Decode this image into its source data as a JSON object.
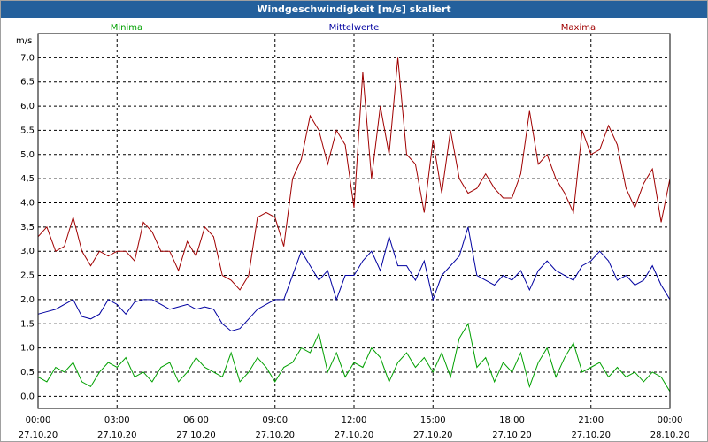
{
  "chart_data": {
    "type": "line",
    "title": "Windgeschwindigkeit [m/s] skaliert",
    "ylabel": "m/s",
    "x": [
      0,
      20,
      40,
      60,
      80,
      100,
      120,
      140,
      160,
      180,
      200,
      220,
      240,
      260,
      280,
      300,
      320,
      340,
      360,
      380,
      400,
      420,
      440,
      460,
      480,
      500,
      520,
      540,
      560,
      580,
      600,
      620,
      640,
      660,
      680,
      700,
      720,
      740,
      760,
      780,
      800,
      820,
      840,
      860,
      880,
      900,
      920,
      940,
      960,
      980,
      1000,
      1020,
      1040,
      1060,
      1080,
      1100,
      1120,
      1140,
      1160,
      1180,
      1200,
      1220,
      1240,
      1260,
      1280,
      1300,
      1320,
      1340,
      1360,
      1380,
      1400,
      1420,
      1440
    ],
    "series": [
      {
        "name": "Minima",
        "color": "#00a000",
        "values": [
          0.4,
          0.3,
          0.6,
          0.5,
          0.7,
          0.3,
          0.2,
          0.5,
          0.7,
          0.6,
          0.8,
          0.4,
          0.5,
          0.3,
          0.6,
          0.7,
          0.3,
          0.5,
          0.8,
          0.6,
          0.5,
          0.4,
          0.9,
          0.3,
          0.5,
          0.8,
          0.6,
          0.3,
          0.6,
          0.7,
          1.0,
          0.9,
          1.3,
          0.5,
          0.9,
          0.4,
          0.7,
          0.6,
          1.0,
          0.8,
          0.3,
          0.7,
          0.9,
          0.6,
          0.8,
          0.5,
          0.9,
          0.4,
          1.2,
          1.5,
          0.6,
          0.8,
          0.3,
          0.7,
          0.5,
          0.9,
          0.2,
          0.7,
          1.0,
          0.4,
          0.8,
          1.1,
          0.5,
          0.6,
          0.7,
          0.4,
          0.6,
          0.4,
          0.5,
          0.3,
          0.5,
          0.4,
          0.1
        ]
      },
      {
        "name": "Mittelwerte",
        "color": "#0000a0",
        "values": [
          1.7,
          1.75,
          1.8,
          1.9,
          2.0,
          1.65,
          1.6,
          1.7,
          2.0,
          1.9,
          1.7,
          1.95,
          2.0,
          2.0,
          1.9,
          1.8,
          1.85,
          1.9,
          1.8,
          1.85,
          1.8,
          1.5,
          1.35,
          1.4,
          1.6,
          1.8,
          1.9,
          2.0,
          2.0,
          2.5,
          3.0,
          2.7,
          2.4,
          2.6,
          2.0,
          2.5,
          2.5,
          2.8,
          3.0,
          2.6,
          3.3,
          2.7,
          2.7,
          2.4,
          2.8,
          2.0,
          2.5,
          2.7,
          2.9,
          3.5,
          2.5,
          2.4,
          2.3,
          2.5,
          2.4,
          2.6,
          2.2,
          2.6,
          2.8,
          2.6,
          2.5,
          2.4,
          2.7,
          2.8,
          3.0,
          2.8,
          2.4,
          2.5,
          2.3,
          2.4,
          2.7,
          2.3,
          2.0
        ]
      },
      {
        "name": "Maxima",
        "color": "#a00000",
        "values": [
          3.3,
          3.5,
          3.0,
          3.1,
          3.7,
          3.0,
          2.7,
          3.0,
          2.9,
          3.0,
          3.0,
          2.8,
          3.6,
          3.4,
          3.0,
          3.0,
          2.6,
          3.2,
          2.9,
          3.5,
          3.3,
          2.5,
          2.4,
          2.2,
          2.5,
          3.7,
          3.8,
          3.7,
          3.1,
          4.5,
          4.9,
          5.8,
          5.5,
          4.8,
          5.5,
          5.2,
          3.9,
          6.7,
          4.5,
          6.0,
          5.0,
          7.0,
          5.0,
          4.8,
          3.8,
          5.3,
          4.2,
          5.5,
          4.5,
          4.2,
          4.3,
          4.6,
          4.3,
          4.1,
          4.1,
          4.6,
          5.9,
          4.8,
          5.0,
          4.5,
          4.2,
          3.8,
          5.5,
          5.0,
          5.1,
          5.6,
          5.2,
          4.3,
          3.9,
          4.4,
          4.7,
          3.6,
          4.5
        ]
      }
    ],
    "xlim": [
      0,
      1440
    ],
    "xticks": [
      {
        "value": 0,
        "label": "00:00\n27.10.20"
      },
      {
        "value": 180,
        "label": "03:00\n27.10.20"
      },
      {
        "value": 360,
        "label": "06:00\n27.10.20"
      },
      {
        "value": 540,
        "label": "09:00\n27.10.20"
      },
      {
        "value": 720,
        "label": "12:00\n27.10.20"
      },
      {
        "value": 900,
        "label": "15:00\n27.10.20"
      },
      {
        "value": 1080,
        "label": "18:00\n27.10.20"
      },
      {
        "value": 1260,
        "label": "21:00\n27.10.20"
      },
      {
        "value": 1440,
        "label": "00:00\n28.10.20"
      }
    ],
    "ylim": [
      -0.25,
      7.5
    ],
    "yticks": [
      {
        "value": 0,
        "label": "0,0"
      },
      {
        "value": 0.5,
        "label": "0,5"
      },
      {
        "value": 1,
        "label": "1,0"
      },
      {
        "value": 1.5,
        "label": "1,5"
      },
      {
        "value": 2,
        "label": "2,0"
      },
      {
        "value": 2.5,
        "label": "2,5"
      },
      {
        "value": 3,
        "label": "3,0"
      },
      {
        "value": 3.5,
        "label": "3,5"
      },
      {
        "value": 4,
        "label": "4,0"
      },
      {
        "value": 4.5,
        "label": "4,5"
      },
      {
        "value": 5,
        "label": "5,0"
      },
      {
        "value": 5.5,
        "label": "5,5"
      },
      {
        "value": 6,
        "label": "6,0"
      },
      {
        "value": 6.5,
        "label": "6,5"
      },
      {
        "value": 7,
        "label": "7,0"
      }
    ],
    "grid": true
  }
}
